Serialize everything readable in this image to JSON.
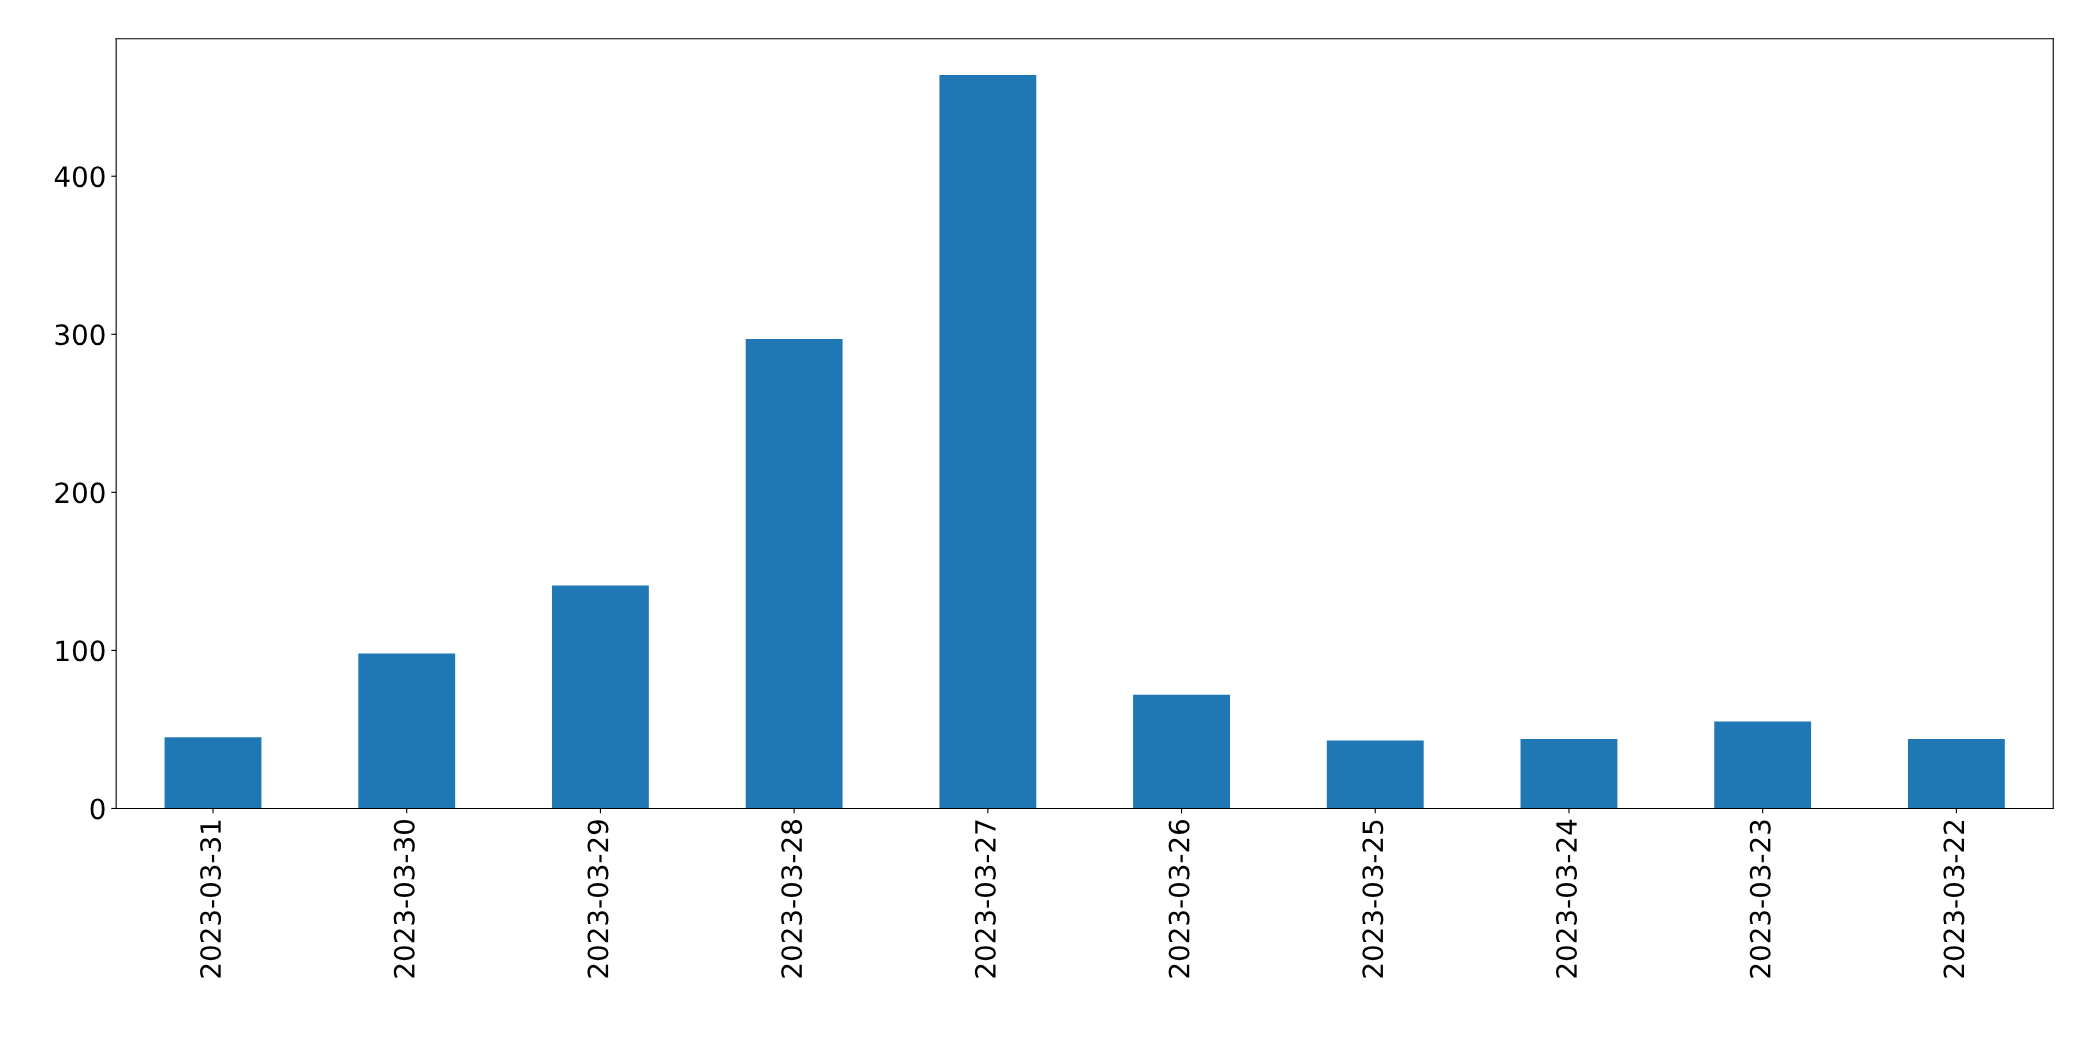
{
  "chart_data": {
    "type": "bar",
    "categories": [
      "2023-03-31",
      "2023-03-30",
      "2023-03-29",
      "2023-03-28",
      "2023-03-27",
      "2023-03-26",
      "2023-03-25",
      "2023-03-24",
      "2023-03-23",
      "2023-03-22"
    ],
    "values": [
      45,
      98,
      141,
      297,
      464,
      72,
      43,
      44,
      55,
      44
    ],
    "color": "#1f77b4",
    "ylim": [
      0,
      487
    ],
    "yticks": [
      0,
      100,
      200,
      300,
      400
    ],
    "grid": false,
    "legend": false
  }
}
